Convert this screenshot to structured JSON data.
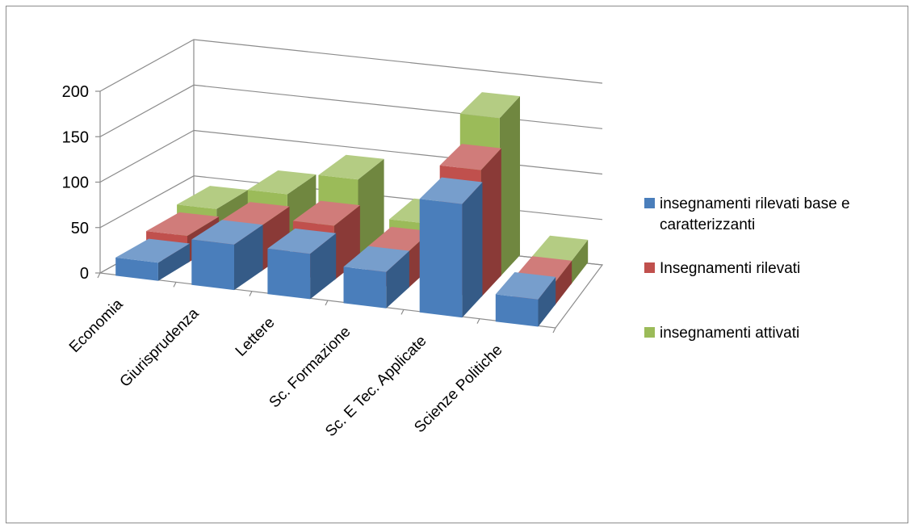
{
  "chart_data": {
    "type": "bar",
    "title": "",
    "xlabel": "",
    "ylabel": "",
    "categories": [
      "Economia",
      "Giurisprudenza",
      "Lettere",
      "Sc. Formazione",
      "Sc. E Tec. Applicate",
      "Scienze Politiche"
    ],
    "series": [
      {
        "name": "insegnamenti rilevati base e caratterizzanti",
        "color": "#4a7ebb",
        "values": [
          20,
          50,
          50,
          40,
          125,
          30
        ]
      },
      {
        "name": "Insegnamenti rilevati",
        "color": "#c0504d",
        "values": [
          30,
          50,
          60,
          40,
          140,
          25
        ]
      },
      {
        "name": "insegnamenti attivati",
        "color": "#9bbb59",
        "values": [
          40,
          65,
          90,
          50,
          175,
          25
        ]
      }
    ],
    "yticks": [
      "0",
      "50",
      "100",
      "150",
      "200"
    ],
    "ylim": [
      0,
      200
    ],
    "grid": true,
    "legend_position": "right"
  }
}
